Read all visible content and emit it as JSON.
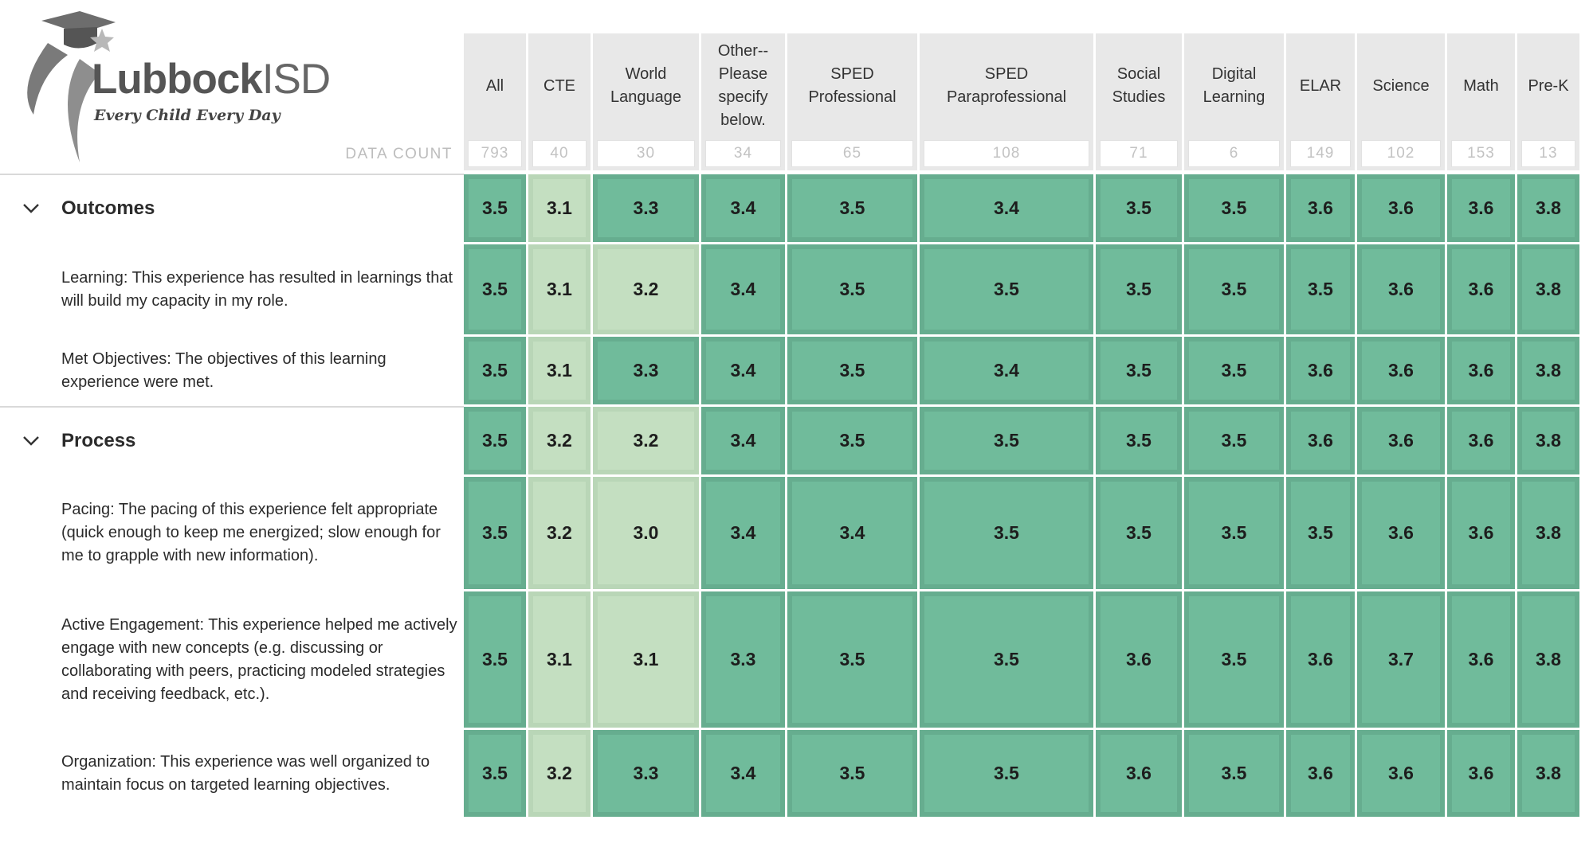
{
  "logo": {
    "name_bold": "Lubbock",
    "name_light": "ISD",
    "tagline": "Every Child Every Day"
  },
  "data_count_label": "DATA COUNT",
  "columns": [
    {
      "label": "All",
      "count": "793"
    },
    {
      "label": "CTE",
      "count": "40"
    },
    {
      "label": "World Language",
      "count": "30"
    },
    {
      "label": "Other--Please specify below.",
      "count": "34"
    },
    {
      "label": "SPED Professional",
      "count": "65"
    },
    {
      "label": "SPED Paraprofessional",
      "count": "108"
    },
    {
      "label": "Social Studies",
      "count": "71"
    },
    {
      "label": "Digital Learning",
      "count": "6"
    },
    {
      "label": "ELAR",
      "count": "149"
    },
    {
      "label": "Science",
      "count": "102"
    },
    {
      "label": "Math",
      "count": "153"
    },
    {
      "label": "Pre-K",
      "count": "13"
    }
  ],
  "colors": {
    "high": "#70bb9b",
    "low": "#c4dfc1",
    "header_bg": "#e8e8e8"
  },
  "rows": [
    {
      "type": "group",
      "label": "Outcomes",
      "values": [
        "3.5",
        "3.1",
        "3.3",
        "3.4",
        "3.5",
        "3.4",
        "3.5",
        "3.5",
        "3.6",
        "3.6",
        "3.6",
        "3.8"
      ],
      "shade": [
        "h",
        "l",
        "h",
        "h",
        "h",
        "h",
        "h",
        "h",
        "h",
        "h",
        "h",
        "h"
      ]
    },
    {
      "type": "item",
      "label": "Learning: This experience has resulted in learnings that will build my capacity in my role.",
      "values": [
        "3.5",
        "3.1",
        "3.2",
        "3.4",
        "3.5",
        "3.5",
        "3.5",
        "3.5",
        "3.5",
        "3.6",
        "3.6",
        "3.8"
      ],
      "shade": [
        "h",
        "l",
        "l",
        "h",
        "h",
        "h",
        "h",
        "h",
        "h",
        "h",
        "h",
        "h"
      ]
    },
    {
      "type": "item",
      "label": "Met Objectives: The objectives of this learning experience were met.",
      "values": [
        "3.5",
        "3.1",
        "3.3",
        "3.4",
        "3.5",
        "3.4",
        "3.5",
        "3.5",
        "3.6",
        "3.6",
        "3.6",
        "3.8"
      ],
      "shade": [
        "h",
        "l",
        "h",
        "h",
        "h",
        "h",
        "h",
        "h",
        "h",
        "h",
        "h",
        "h"
      ]
    },
    {
      "type": "group",
      "label": "Process",
      "values": [
        "3.5",
        "3.2",
        "3.2",
        "3.4",
        "3.5",
        "3.5",
        "3.5",
        "3.5",
        "3.6",
        "3.6",
        "3.6",
        "3.8"
      ],
      "shade": [
        "h",
        "l",
        "l",
        "h",
        "h",
        "h",
        "h",
        "h",
        "h",
        "h",
        "h",
        "h"
      ]
    },
    {
      "type": "item",
      "label": "Pacing: The pacing of this experience felt appropriate (quick enough to keep me energized; slow enough for me to grapple with new information).",
      "values": [
        "3.5",
        "3.2",
        "3.0",
        "3.4",
        "3.4",
        "3.5",
        "3.5",
        "3.5",
        "3.5",
        "3.6",
        "3.6",
        "3.8"
      ],
      "shade": [
        "h",
        "l",
        "l",
        "h",
        "h",
        "h",
        "h",
        "h",
        "h",
        "h",
        "h",
        "h"
      ]
    },
    {
      "type": "item",
      "label": "Active Engagement: This experience helped me actively engage with new concepts (e.g. discussing or collaborating with peers, practicing modeled strategies and receiving feedback, etc.).",
      "values": [
        "3.5",
        "3.1",
        "3.1",
        "3.3",
        "3.5",
        "3.5",
        "3.6",
        "3.5",
        "3.6",
        "3.7",
        "3.6",
        "3.8"
      ],
      "shade": [
        "h",
        "l",
        "l",
        "h",
        "h",
        "h",
        "h",
        "h",
        "h",
        "h",
        "h",
        "h"
      ]
    },
    {
      "type": "item",
      "label": "Organization: This experience was well organized to maintain focus on targeted learning objectives.",
      "values": [
        "3.5",
        "3.2",
        "3.3",
        "3.4",
        "3.5",
        "3.5",
        "3.6",
        "3.5",
        "3.6",
        "3.6",
        "3.6",
        "3.8"
      ],
      "shade": [
        "h",
        "l",
        "h",
        "h",
        "h",
        "h",
        "h",
        "h",
        "h",
        "h",
        "h",
        "h"
      ]
    }
  ]
}
